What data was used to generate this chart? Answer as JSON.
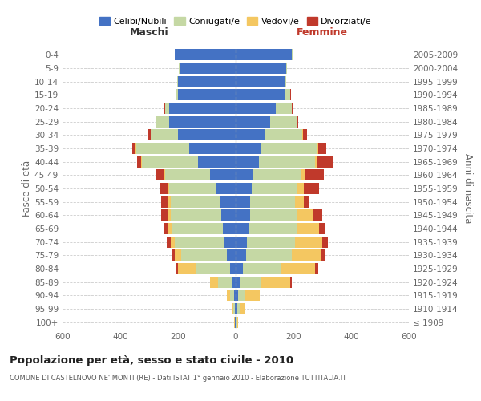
{
  "age_groups": [
    "100+",
    "95-99",
    "90-94",
    "85-89",
    "80-84",
    "75-79",
    "70-74",
    "65-69",
    "60-64",
    "55-59",
    "50-54",
    "45-49",
    "40-44",
    "35-39",
    "30-34",
    "25-29",
    "20-24",
    "15-19",
    "10-14",
    "5-9",
    "0-4"
  ],
  "birth_years": [
    "≤ 1909",
    "1910-1914",
    "1915-1919",
    "1920-1924",
    "1925-1929",
    "1930-1934",
    "1935-1939",
    "1940-1944",
    "1945-1949",
    "1950-1954",
    "1955-1959",
    "1960-1964",
    "1965-1969",
    "1970-1974",
    "1975-1979",
    "1980-1984",
    "1985-1989",
    "1990-1994",
    "1995-1999",
    "2000-2004",
    "2005-2009"
  ],
  "male": {
    "celibe": [
      2,
      3,
      5,
      10,
      20,
      30,
      40,
      45,
      50,
      55,
      70,
      90,
      130,
      160,
      200,
      230,
      230,
      200,
      200,
      195,
      210
    ],
    "coniugato": [
      2,
      5,
      15,
      50,
      120,
      160,
      170,
      175,
      175,
      170,
      160,
      155,
      195,
      185,
      95,
      45,
      15,
      5,
      2,
      1,
      0
    ],
    "vedovo": [
      1,
      3,
      10,
      30,
      60,
      20,
      15,
      12,
      10,
      8,
      5,
      3,
      2,
      1,
      0,
      0,
      0,
      0,
      0,
      0,
      0
    ],
    "divorziato": [
      0,
      0,
      0,
      0,
      5,
      10,
      15,
      18,
      22,
      25,
      30,
      30,
      15,
      12,
      8,
      3,
      2,
      0,
      0,
      0,
      0
    ]
  },
  "female": {
    "nubile": [
      2,
      5,
      8,
      15,
      25,
      35,
      40,
      45,
      50,
      50,
      55,
      60,
      80,
      90,
      100,
      120,
      140,
      170,
      170,
      175,
      195
    ],
    "coniugata": [
      3,
      10,
      25,
      75,
      130,
      160,
      165,
      165,
      165,
      155,
      155,
      165,
      195,
      190,
      130,
      90,
      55,
      20,
      5,
      2,
      1
    ],
    "vedova": [
      2,
      15,
      50,
      100,
      120,
      100,
      95,
      80,
      55,
      30,
      25,
      15,
      8,
      5,
      2,
      1,
      0,
      0,
      0,
      0,
      0
    ],
    "divorziata": [
      0,
      0,
      0,
      5,
      10,
      15,
      20,
      22,
      30,
      20,
      55,
      65,
      55,
      30,
      15,
      5,
      3,
      1,
      0,
      0,
      0
    ]
  },
  "colors": {
    "celibe": "#4472C4",
    "coniugato": "#c5d8a4",
    "vedovo": "#F4C761",
    "divorziato": "#C0392B"
  },
  "title": "Popolazione per età, sesso e stato civile - 2010",
  "subtitle": "COMUNE DI CASTELNOVO NE' MONTI (RE) - Dati ISTAT 1° gennaio 2010 - Elaborazione TUTTITALIA.IT",
  "xlabel_left": "Maschi",
  "xlabel_right": "Femmine",
  "ylabel_left": "Fasce di età",
  "ylabel_right": "Anni di nascita",
  "xlim": 600,
  "xticks": [
    -600,
    -400,
    -200,
    0,
    200,
    400,
    600
  ],
  "legend_labels": [
    "Celibi/Nubili",
    "Coniugati/e",
    "Vedovi/e",
    "Divorziati/e"
  ],
  "background_color": "#ffffff",
  "grid_color": "#cccccc",
  "centerline_color": "#aaaaaa",
  "label_color": "#666666",
  "maschi_color": "#333333",
  "femmine_color": "#C0392B"
}
